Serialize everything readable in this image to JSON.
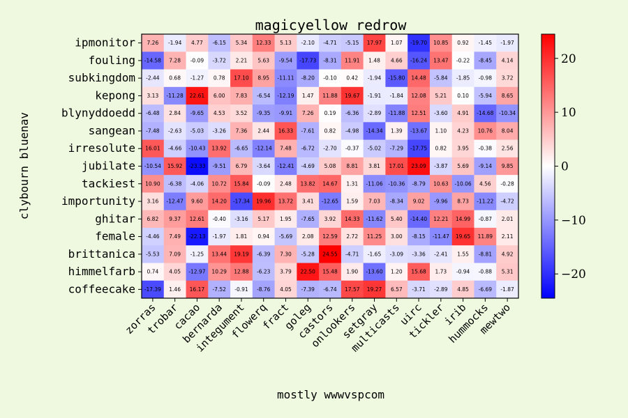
{
  "chart_data": {
    "type": "heatmap",
    "title": "magicyellow redrow",
    "xlabel": "mostly wwwvspcom",
    "ylabel": "clybourn bluenav",
    "x_categories": [
      "zorras",
      "trobar",
      "cacao",
      "bernarda",
      "integument",
      "flowerq",
      "fract",
      "goleg",
      "castors",
      "onlookers",
      "setgray",
      "multicasts",
      "uirc",
      "tickler",
      "irib",
      "hummocks",
      "mewtwo"
    ],
    "y_categories": [
      "ipmonitor",
      "fouling",
      "subkingdom",
      "kepong",
      "blynyddoedd",
      "sangean",
      "irresolute",
      "jubilate",
      "tackiest",
      "importunity",
      "ghitar",
      "female",
      "brittanica",
      "himmelfarb",
      "coffeecake"
    ],
    "values": [
      [
        7.26,
        -1.94,
        4.77,
        -6.15,
        5.34,
        12.33,
        5.13,
        -2.1,
        -4.71,
        -5.15,
        17.97,
        1.07,
        -19.7,
        10.85,
        0.92,
        -1.45,
        -1.97
      ],
      [
        -14.58,
        7.28,
        -0.09,
        -3.72,
        2.21,
        5.63,
        -9.54,
        -17.73,
        -8.31,
        11.91,
        1.48,
        4.66,
        -16.24,
        13.47,
        -0.22,
        -8.45,
        4.14
      ],
      [
        -2.44,
        0.68,
        -1.27,
        0.78,
        17.1,
        8.95,
        -11.11,
        -8.2,
        -0.1,
        0.42,
        -1.94,
        -15.8,
        14.48,
        -5.84,
        -1.85,
        -0.98,
        3.72
      ],
      [
        3.13,
        -11.28,
        22.61,
        6.0,
        7.83,
        -6.54,
        -12.19,
        1.47,
        11.88,
        19.67,
        -1.91,
        -1.84,
        12.08,
        5.21,
        0.1,
        -5.94,
        8.65
      ],
      [
        -6.48,
        2.84,
        -9.65,
        4.53,
        3.52,
        -9.35,
        -9.91,
        7.26,
        0.19,
        -6.36,
        -2.89,
        -11.88,
        12.51,
        -3.6,
        4.91,
        -14.68,
        -10.34
      ],
      [
        -7.48,
        -2.63,
        -5.03,
        -3.26,
        7.36,
        2.44,
        16.33,
        -7.61,
        0.82,
        -4.98,
        -14.34,
        1.39,
        -13.67,
        1.1,
        4.23,
        10.76,
        8.04
      ],
      [
        16.01,
        -4.66,
        -10.43,
        13.92,
        -6.65,
        -12.14,
        7.48,
        -6.72,
        -2.7,
        -0.37,
        -5.02,
        -7.29,
        -17.75,
        0.82,
        3.95,
        -0.38,
        2.56
      ],
      [
        -10.54,
        15.92,
        -23.33,
        -9.51,
        6.79,
        -3.64,
        -12.41,
        -4.69,
        5.08,
        8.81,
        3.81,
        17.01,
        23.09,
        -3.87,
        5.69,
        -9.14,
        9.85
      ],
      [
        10.9,
        -6.38,
        -4.06,
        10.72,
        15.84,
        -0.09,
        2.48,
        13.82,
        14.67,
        1.31,
        -11.06,
        -10.36,
        -8.79,
        10.63,
        -10.06,
        4.56,
        -0.28
      ],
      [
        3.16,
        -12.47,
        9.6,
        14.2,
        -17.34,
        19.96,
        13.72,
        3.41,
        -12.65,
        1.59,
        7.03,
        -8.34,
        9.02,
        -9.96,
        8.73,
        -11.22,
        -4.72
      ],
      [
        6.82,
        9.37,
        12.61,
        -0.4,
        -3.16,
        5.17,
        1.95,
        -7.65,
        3.92,
        14.33,
        -11.62,
        5.4,
        -14.4,
        12.21,
        14.99,
        -0.87,
        2.01
      ],
      [
        -4.46,
        7.49,
        -22.13,
        -1.97,
        1.81,
        0.94,
        -5.69,
        2.08,
        12.59,
        2.72,
        11.25,
        3.0,
        -8.15,
        -11.47,
        19.65,
        11.89,
        2.11
      ],
      [
        -5.53,
        7.09,
        -1.25,
        13.44,
        19.19,
        -6.39,
        7.3,
        -5.28,
        24.55,
        -4.71,
        -1.65,
        -3.09,
        -3.36,
        -2.41,
        1.55,
        -8.81,
        4.92
      ],
      [
        0.74,
        4.05,
        -12.97,
        10.29,
        12.88,
        -6.23,
        3.79,
        22.5,
        15.48,
        1.9,
        -13.6,
        1.2,
        15.68,
        1.73,
        -0.94,
        -0.88,
        5.31
      ],
      [
        -17.39,
        1.46,
        16.17,
        -7.52,
        -0.91,
        -8.76,
        4.05,
        -7.39,
        -6.74,
        17.57,
        19.27,
        6.57,
        -3.71,
        -2.89,
        4.85,
        -6.69,
        -1.87
      ]
    ],
    "colormap": "bwr",
    "vmin": -24.5,
    "vmax": 24.5,
    "colorbar_ticks": [
      -20,
      -10,
      0,
      10,
      20
    ],
    "colorbar_tick_labels": [
      "−20",
      "−10",
      "0",
      "10",
      "20"
    ],
    "grid": false,
    "colors": {
      "negative": "#0000ff",
      "neutral": "#ffffff",
      "positive": "#ff0000",
      "background": "#eef9e0"
    }
  }
}
